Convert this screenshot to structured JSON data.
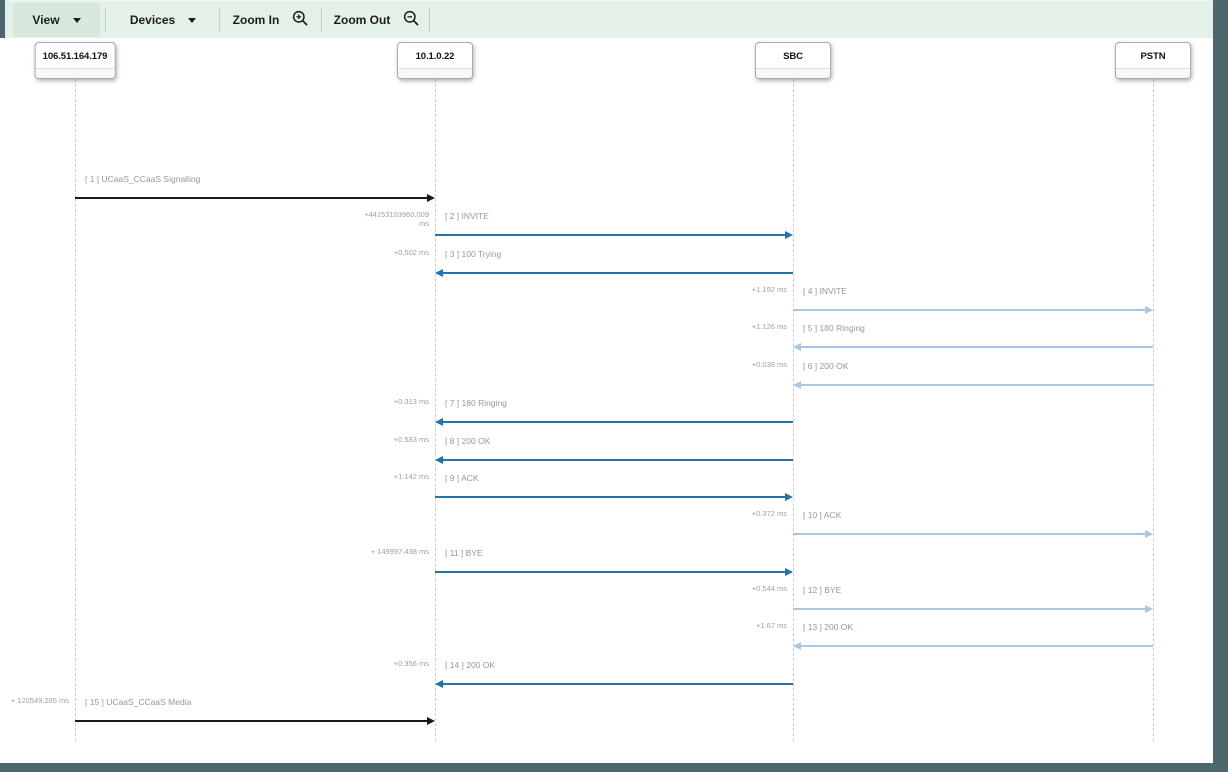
{
  "toolbar": {
    "items": [
      {
        "label": "View",
        "icon": "chevron-down",
        "active": true
      },
      {
        "label": "Devices",
        "icon": "chevron-down",
        "active": false
      },
      {
        "label": "Zoom In",
        "icon": "zoom-in",
        "active": false
      },
      {
        "label": "Zoom Out",
        "icon": "zoom-out",
        "active": false
      }
    ]
  },
  "devices": [
    {
      "name": "106.51.164.179"
    },
    {
      "name": "10.1.0.22"
    },
    {
      "name": "SBC"
    },
    {
      "name": "PSTN"
    }
  ],
  "messages": [
    {
      "seq": 1,
      "label": "[ 1 ] UCaaS_CCaaS Signalling",
      "time": "",
      "from": "106.51.164.179",
      "to": "10.1.0.22",
      "tone": "black"
    },
    {
      "seq": 2,
      "label": "[ 2 ] INVITE",
      "time": "+44153103960.009 ms",
      "from": "10.1.0.22",
      "to": "SBC",
      "tone": "blue"
    },
    {
      "seq": 3,
      "label": "[ 3 ] 100 Trying",
      "time": "+0.502 ms",
      "from": "SBC",
      "to": "10.1.0.22",
      "tone": "blue"
    },
    {
      "seq": 4,
      "label": "[ 4 ] INVITE",
      "time": "+1.192 ms",
      "from": "SBC",
      "to": "PSTN",
      "tone": "light"
    },
    {
      "seq": 5,
      "label": "[ 5 ] 180 Ringing",
      "time": "+1.126 ms",
      "from": "PSTN",
      "to": "SBC",
      "tone": "light"
    },
    {
      "seq": 6,
      "label": "[ 6 ] 200 OK",
      "time": "+0.038 ms",
      "from": "PSTN",
      "to": "SBC",
      "tone": "light"
    },
    {
      "seq": 7,
      "label": "[ 7 ] 180 Ringing",
      "time": "+0.313 ms",
      "from": "SBC",
      "to": "10.1.0.22",
      "tone": "blue"
    },
    {
      "seq": 8,
      "label": "[ 8 ] 200 OK",
      "time": "+0.583 ms",
      "from": "SBC",
      "to": "10.1.0.22",
      "tone": "blue"
    },
    {
      "seq": 9,
      "label": "[ 9 ] ACK",
      "time": "+1.142 ms",
      "from": "10.1.0.22",
      "to": "SBC",
      "tone": "blue"
    },
    {
      "seq": 10,
      "label": "[ 10 ] ACK",
      "time": "+0.372 ms",
      "from": "SBC",
      "to": "PSTN",
      "tone": "light"
    },
    {
      "seq": 11,
      "label": "[ 11 ] BYE",
      "time": "+ 149997.438 ms",
      "from": "10.1.0.22",
      "to": "SBC",
      "tone": "blue"
    },
    {
      "seq": 12,
      "label": "[ 12 ] BYE",
      "time": "+0.544 ms",
      "from": "SBC",
      "to": "PSTN",
      "tone": "light"
    },
    {
      "seq": 13,
      "label": "[ 13 ] 200 OK",
      "time": "+1.67 ms",
      "from": "PSTN",
      "to": "SBC",
      "tone": "light"
    },
    {
      "seq": 14,
      "label": "[ 14 ] 200 OK",
      "time": "+0.356 ms",
      "from": "SBC",
      "to": "10.1.0.22",
      "tone": "blue"
    },
    {
      "seq": 15,
      "label": "[ 15 ] UCaaS_CCaaS Media",
      "time": "+ 120549.285 ms",
      "from": "106.51.164.179",
      "to": "10.1.0.22",
      "tone": "black"
    }
  ],
  "colors": {
    "arrow_black": "#1a1a1a",
    "arrow_blue": "#2273aa",
    "arrow_light_blue": "#a9c6e2",
    "toolbar_bg": "#e4f1e8",
    "toolbar_active_bg": "#d7e9dd",
    "frame": "#4d666c",
    "label_text": "#8d99a4",
    "lifeline": "#cccccc"
  }
}
